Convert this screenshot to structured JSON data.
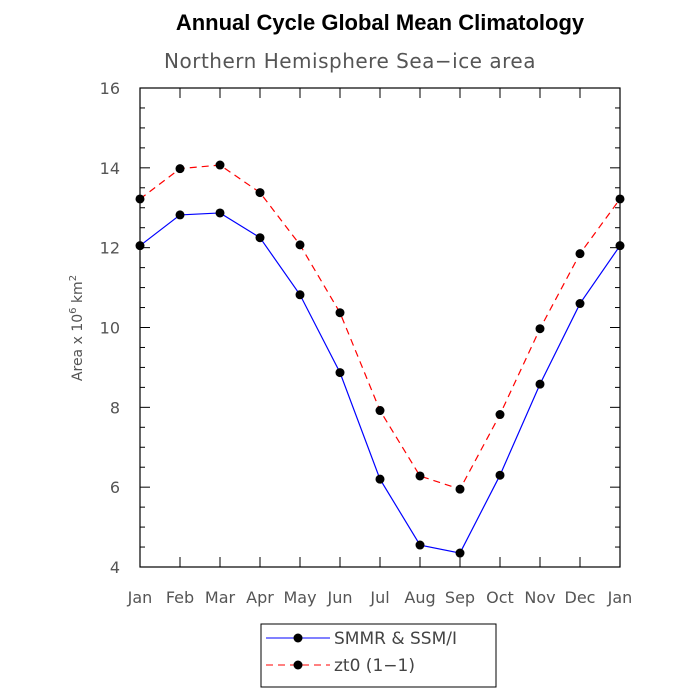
{
  "chart_data": {
    "type": "line",
    "title": "Annual Cycle Global Mean Climatology",
    "subtitle": "Northern Hemisphere Sea−ice area",
    "ylabel_main": "Area x 10",
    "ylabel_exp": "6",
    "ylabel_unit": " km",
    "ylabel_unit_exp": "2",
    "categories": [
      "Jan",
      "Feb",
      "Mar",
      "Apr",
      "May",
      "Jun",
      "Jul",
      "Aug",
      "Sep",
      "Oct",
      "Nov",
      "Dec",
      "Jan"
    ],
    "ylim": [
      4,
      16
    ],
    "yticks": [
      4,
      6,
      8,
      10,
      12,
      14,
      16
    ],
    "grid": false,
    "legend_position": "bottom-center",
    "series": [
      {
        "name": "SMMR & SSM/I",
        "color": "#0000ff",
        "dash": "solid",
        "values": [
          12.05,
          12.82,
          12.87,
          12.25,
          10.82,
          8.87,
          6.2,
          4.55,
          4.35,
          6.3,
          8.58,
          10.6,
          12.05
        ]
      },
      {
        "name": "zt0 (1−1)",
        "color": "#ff0000",
        "dash": "dashed",
        "values": [
          13.22,
          13.98,
          14.07,
          13.38,
          12.07,
          10.37,
          7.92,
          6.28,
          5.95,
          7.82,
          9.97,
          11.85,
          13.22
        ]
      }
    ]
  }
}
